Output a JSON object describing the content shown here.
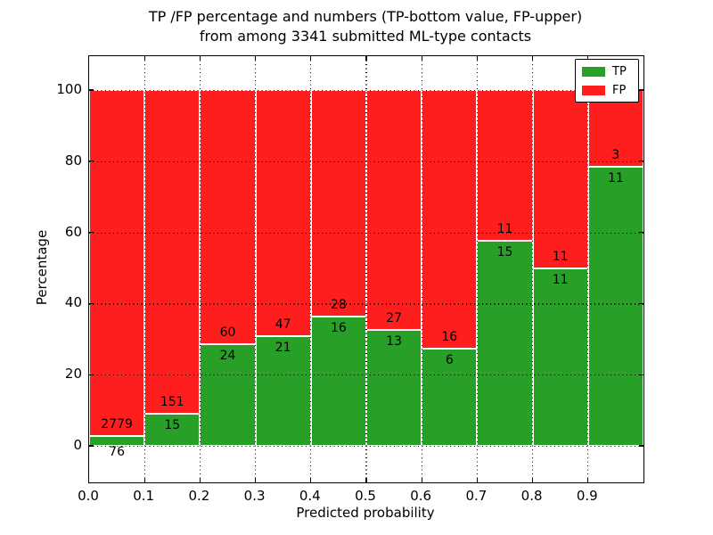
{
  "title": {
    "line1": "TP /FP percentage and numbers (TP-bottom value, FP-upper)",
    "line2": "from among 3341 submitted ML-type contacts"
  },
  "axes": {
    "xlabel": "Predicted probability",
    "ylabel": "Percentage",
    "x_tick_labels": [
      "0.0",
      "0.1",
      "0.2",
      "0.3",
      "0.4",
      "0.5",
      "0.6",
      "0.7",
      "0.8",
      "0.9"
    ],
    "y_tick_labels": [
      "0",
      "20",
      "40",
      "60",
      "80",
      "100"
    ],
    "y_tick_values": [
      0,
      20,
      40,
      60,
      80,
      100
    ]
  },
  "legend": {
    "position": "upper right",
    "items": [
      {
        "label": "TP",
        "color": "#28a028"
      },
      {
        "label": "FP",
        "color": "#ff1e1e"
      }
    ]
  },
  "chart_data": {
    "type": "bar",
    "stacked": true,
    "normalized": "each bin stacked to 100%",
    "title": "TP /FP percentage and numbers (TP-bottom value, FP-upper) from among 3341 submitted ML-type contacts",
    "xlabel": "Predicted probability",
    "ylabel": "Percentage",
    "xlim": [
      0.0,
      1.0
    ],
    "ylim": [
      -10,
      110
    ],
    "grid": "dotted black, horizontal every 20%, vertical every 0.1",
    "total_contacts_in_title": 3341,
    "bins": [
      "0.0-0.1",
      "0.1-0.2",
      "0.2-0.3",
      "0.3-0.4",
      "0.4-0.5",
      "0.5-0.6",
      "0.6-0.7",
      "0.7-0.8",
      "0.8-0.9",
      "0.9-1.0"
    ],
    "series": [
      {
        "name": "TP",
        "color": "#28a028",
        "counts": [
          76,
          15,
          24,
          21,
          16,
          13,
          6,
          15,
          11,
          11
        ]
      },
      {
        "name": "FP",
        "color": "#ff1e1e",
        "counts": [
          2779,
          151,
          60,
          47,
          28,
          27,
          16,
          11,
          11,
          3
        ]
      }
    ],
    "tp_percent": [
      2.66,
      9.04,
      28.57,
      30.88,
      36.36,
      32.5,
      27.27,
      57.69,
      50.0,
      78.57
    ]
  }
}
